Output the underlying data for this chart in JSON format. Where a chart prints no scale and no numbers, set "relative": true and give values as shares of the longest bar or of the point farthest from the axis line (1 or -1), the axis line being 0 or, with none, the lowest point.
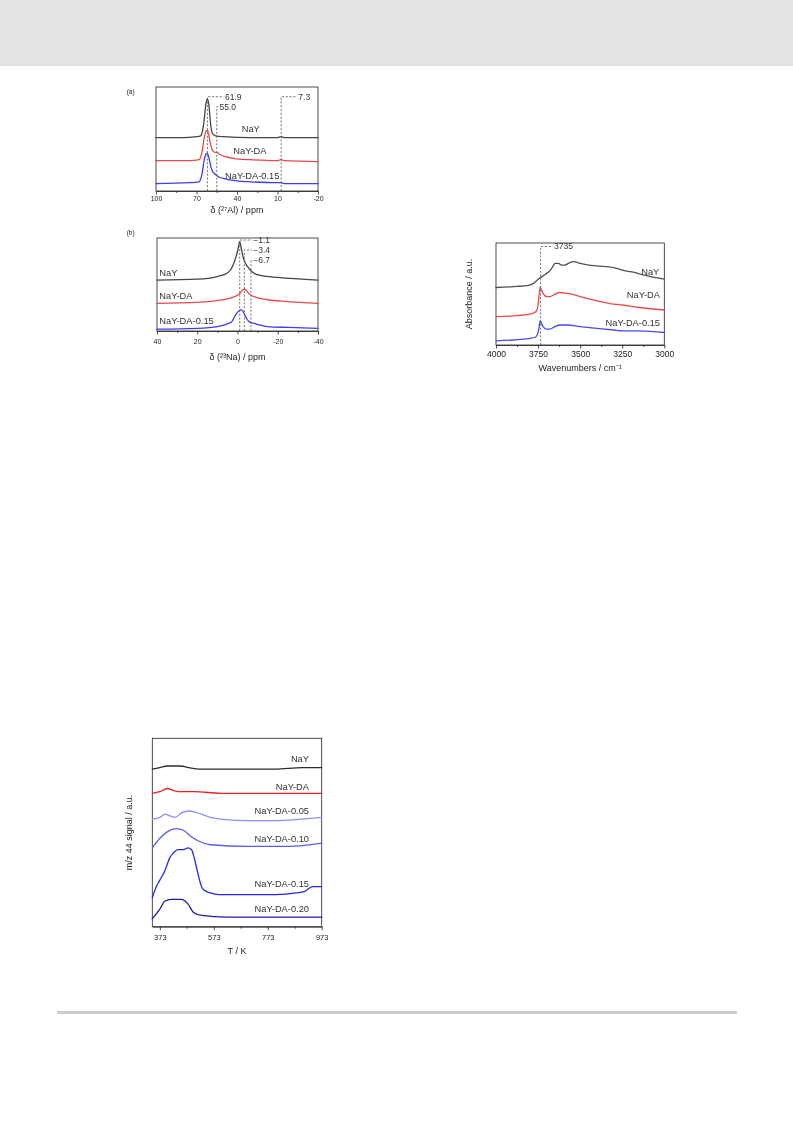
{
  "chart_data": [
    {
      "type": "line",
      "title": "(a)",
      "xlabel": "δ (²⁷Al) / ppm",
      "relative": true,
      "xlim": [
        100,
        -20
      ],
      "xticks": [
        100,
        {
          "value": 85,
          "label": null
        },
        70,
        {
          "value": 55,
          "label": null
        },
        40,
        {
          "value": 25,
          "label": null
        },
        10,
        {
          "value": -5,
          "label": null
        },
        -20
      ],
      "ref_lines": [
        {
          "axis": "x",
          "value": 61.9,
          "label": "61.9",
          "line_style": "dashed"
        },
        {
          "axis": "x",
          "value": 55.0,
          "label": "55.0",
          "line_style": "dashed"
        },
        {
          "axis": "x",
          "value": 7.3,
          "label": "7.3",
          "line_style": "dashed"
        }
      ],
      "series": [
        {
          "name": "NaY",
          "color": "#444444",
          "x": [
            100,
            80,
            70,
            67,
            65.5,
            64.5,
            63,
            61.9,
            60.8,
            59.5,
            58,
            56,
            50,
            30,
            10,
            7.3,
            5,
            -20
          ],
          "values": [
            0.58,
            0.58,
            0.59,
            0.6,
            0.66,
            0.75,
            0.95,
            1.0,
            0.93,
            0.72,
            0.62,
            0.6,
            0.59,
            0.58,
            0.58,
            0.59,
            0.58,
            0.58
          ]
        },
        {
          "name": "NaY-DA",
          "color": "#e8494b",
          "x": [
            100,
            75,
            68,
            66,
            64.5,
            63,
            61.9,
            60.8,
            59.5,
            58,
            56,
            55,
            53,
            48,
            40,
            30,
            10,
            7.3,
            5,
            -20
          ],
          "values": [
            0.33,
            0.33,
            0.34,
            0.42,
            0.56,
            0.65,
            0.66,
            0.6,
            0.5,
            0.44,
            0.42,
            0.42,
            0.4,
            0.37,
            0.35,
            0.34,
            0.33,
            0.34,
            0.33,
            0.32
          ]
        },
        {
          "name": "NaY-DA-0.15",
          "color": "#3c3cf0",
          "x": [
            100,
            75,
            68,
            66,
            64.5,
            63,
            61.9,
            60.8,
            59.5,
            58,
            56,
            53,
            48,
            40,
            30,
            10,
            7.3,
            5,
            -20
          ],
          "values": [
            0.08,
            0.09,
            0.1,
            0.18,
            0.32,
            0.4,
            0.41,
            0.36,
            0.27,
            0.21,
            0.18,
            0.15,
            0.13,
            0.11,
            0.1,
            0.09,
            0.09,
            0.08,
            0.08
          ]
        }
      ]
    },
    {
      "type": "line",
      "title": "(b)",
      "xlabel": "δ (²³Na) / ppm",
      "relative": true,
      "xlim": [
        40,
        -40
      ],
      "xticks": [
        40,
        {
          "value": 30,
          "label": null
        },
        20,
        {
          "value": 10,
          "label": null
        },
        0,
        {
          "value": -10,
          "label": null
        },
        -20,
        {
          "value": -30,
          "label": null
        },
        -40
      ],
      "ref_lines": [
        {
          "axis": "x",
          "value": -1.1,
          "label": "−1.1",
          "line_style": "dashed"
        },
        {
          "axis": "x",
          "value": -3.4,
          "label": "−3.4",
          "line_style": "dashed"
        },
        {
          "axis": "x",
          "value": -6.7,
          "label": "−6.7",
          "line_style": "dashed"
        }
      ],
      "series": [
        {
          "name": "NaY",
          "color": "#444444",
          "x": [
            40,
            20,
            10,
            5,
            3,
            1.5,
            0,
            -1.1,
            -2,
            -3,
            -5,
            -8,
            -12,
            -20,
            -40
          ],
          "values": [
            0.57,
            0.58,
            0.61,
            0.65,
            0.7,
            0.78,
            0.89,
            1.0,
            0.91,
            0.81,
            0.72,
            0.65,
            0.62,
            0.6,
            0.57
          ]
        },
        {
          "name": "NaY-DA",
          "color": "#e8494b",
          "x": [
            40,
            20,
            10,
            5,
            2,
            0,
            -1.5,
            -2.5,
            -3.4,
            -4.5,
            -6,
            -9,
            -15,
            -25,
            -40
          ],
          "values": [
            0.31,
            0.32,
            0.34,
            0.36,
            0.38,
            0.4,
            0.43,
            0.46,
            0.47,
            0.45,
            0.41,
            0.38,
            0.35,
            0.33,
            0.31
          ]
        },
        {
          "name": "NaY-DA-0.15",
          "color": "#3c3cf0",
          "x": [
            40,
            20,
            10,
            5,
            3,
            1.5,
            0,
            -1.7,
            -3,
            -4.5,
            -6,
            -9,
            -15,
            -25,
            -40
          ],
          "values": [
            0.02,
            0.03,
            0.05,
            0.08,
            0.1,
            0.16,
            0.21,
            0.24,
            0.21,
            0.14,
            0.1,
            0.08,
            0.05,
            0.04,
            0.03
          ]
        }
      ]
    },
    {
      "type": "line",
      "xlabel": "Wavenumbers / cm⁻¹",
      "ylabel": "Absorbance / a.u.",
      "relative": true,
      "xlim": [
        4000,
        3000
      ],
      "xticks": [
        4000,
        {
          "value": 3875,
          "label": null
        },
        3750,
        {
          "value": 3625,
          "label": null
        },
        3500,
        {
          "value": 3375,
          "label": null
        },
        3250,
        {
          "value": 3125,
          "label": null
        },
        3000
      ],
      "ref_lines": [
        {
          "axis": "x",
          "value": 3735,
          "label": "3735",
          "line_style": "dashed"
        }
      ],
      "series": [
        {
          "name": "NaY",
          "color": "#505050",
          "x": [
            4000,
            3900,
            3800,
            3770,
            3750,
            3720,
            3700,
            3680,
            3660,
            3650,
            3630,
            3610,
            3590,
            3570,
            3540,
            3500,
            3450,
            3400,
            3300,
            3250,
            3200,
            3100,
            3000
          ],
          "values": [
            0.69,
            0.7,
            0.72,
            0.75,
            0.79,
            0.83,
            0.86,
            0.89,
            0.95,
            0.98,
            0.98,
            0.96,
            0.96,
            0.98,
            1.0,
            0.98,
            0.96,
            0.95,
            0.93,
            0.9,
            0.88,
            0.83,
            0.79
          ]
        },
        {
          "name": "NaY-DA",
          "color": "#ec4a4a",
          "x": [
            4000,
            3900,
            3800,
            3770,
            3755,
            3745,
            3738,
            3730,
            3720,
            3700,
            3680,
            3650,
            3620,
            3580,
            3550,
            3500,
            3400,
            3300,
            3250,
            3150,
            3000
          ],
          "values": [
            0.34,
            0.35,
            0.37,
            0.39,
            0.43,
            0.58,
            0.69,
            0.66,
            0.62,
            0.58,
            0.58,
            0.61,
            0.63,
            0.62,
            0.61,
            0.58,
            0.53,
            0.49,
            0.48,
            0.45,
            0.42
          ]
        },
        {
          "name": "NaY-DA-0.15",
          "color": "#4a4af0",
          "x": [
            4000,
            3900,
            3800,
            3770,
            3755,
            3745,
            3738,
            3730,
            3720,
            3700,
            3680,
            3650,
            3620,
            3580,
            3500,
            3400,
            3300,
            3250,
            3150,
            3000
          ],
          "values": [
            0.05,
            0.06,
            0.08,
            0.09,
            0.12,
            0.2,
            0.29,
            0.26,
            0.22,
            0.19,
            0.19,
            0.22,
            0.24,
            0.24,
            0.22,
            0.2,
            0.18,
            0.17,
            0.17,
            0.15
          ]
        }
      ]
    },
    {
      "type": "line",
      "xlabel": "T / K",
      "ylabel": "m/z 44 signal / a.u.",
      "relative": true,
      "xlim": [
        345,
        973
      ],
      "xticks": [
        373,
        {
          "value": 473,
          "label": null
        },
        573,
        {
          "value": 673,
          "label": null
        },
        773,
        {
          "value": 873,
          "label": null
        },
        973
      ],
      "series": [
        {
          "name": "NaY",
          "color": "#2b2b2b",
          "x": [
            345,
            373,
            400,
            450,
            480,
            520,
            600,
            700,
            800,
            900,
            973
          ],
          "values": [
            0.98,
            0.99,
            1.0,
            1.0,
            0.99,
            0.98,
            0.98,
            0.98,
            0.98,
            0.99,
            0.99
          ]
        },
        {
          "name": "NaY-DA",
          "color": "#e8201e",
          "x": [
            345,
            373,
            400,
            420,
            450,
            500,
            600,
            700,
            800,
            900,
            973
          ],
          "values": [
            0.83,
            0.84,
            0.86,
            0.85,
            0.84,
            0.84,
            0.83,
            0.83,
            0.83,
            0.83,
            0.83
          ]
        },
        {
          "name": "NaY-DA-0.05",
          "color": "#8f8ff2",
          "x": [
            345,
            373,
            392,
            410,
            429,
            455,
            481,
            510,
            560,
            600,
            700,
            800,
            900,
            973
          ],
          "values": [
            0.67,
            0.68,
            0.7,
            0.69,
            0.68,
            0.71,
            0.72,
            0.71,
            0.68,
            0.67,
            0.66,
            0.66,
            0.67,
            0.68
          ]
        },
        {
          "name": "NaY-DA-0.10",
          "color": "#5c5cec",
          "x": [
            345,
            373,
            400,
            435,
            460,
            490,
            520,
            560,
            700,
            850,
            973
          ],
          "values": [
            0.49,
            0.55,
            0.59,
            0.61,
            0.6,
            0.56,
            0.53,
            0.51,
            0.5,
            0.5,
            0.52
          ]
        },
        {
          "name": "NaY-DA-0.15",
          "color": "#2626e6",
          "x": [
            345,
            360,
            373,
            392,
            410,
            424,
            440,
            460,
            478,
            490,
            500,
            510,
            520,
            530,
            545,
            560,
            590,
            680,
            800,
            880,
            910,
            940,
            973
          ],
          "values": [
            0.18,
            0.25,
            0.29,
            0.35,
            0.43,
            0.46,
            0.48,
            0.48,
            0.49,
            0.48,
            0.43,
            0.36,
            0.29,
            0.24,
            0.22,
            0.21,
            0.2,
            0.2,
            0.2,
            0.21,
            0.22,
            0.25,
            0.25
          ]
        },
        {
          "name": "NaY-DA-0.20",
          "color": "#1c1ca6",
          "x": [
            345,
            373,
            392,
            416,
            453,
            478,
            497,
            528,
            620,
            806,
            973
          ],
          "values": [
            0.05,
            0.11,
            0.16,
            0.17,
            0.17,
            0.14,
            0.09,
            0.07,
            0.06,
            0.06,
            0.06
          ]
        }
      ]
    }
  ]
}
